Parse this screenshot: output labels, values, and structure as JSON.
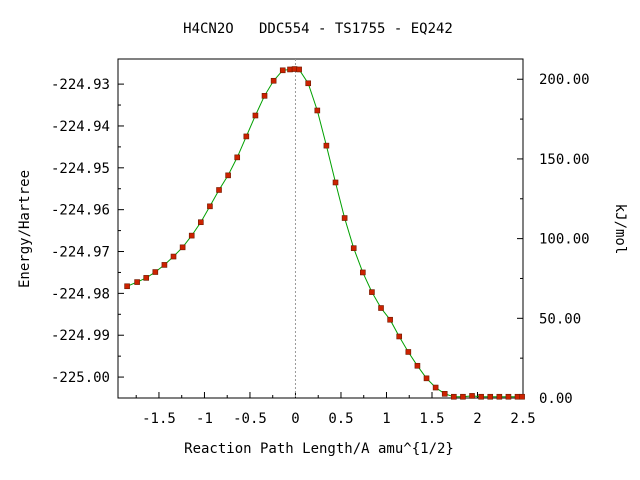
{
  "chart_data": {
    "type": "scatter",
    "title": "H4CN2O   DDC554 - TS1755 - EQ242",
    "xlabel": "Reaction Path Length/A amu^{1/2}",
    "ylabel": "Energy/Hartree",
    "y2label": "kJ/mol",
    "xlim": [
      -1.95,
      2.5
    ],
    "ylim": [
      -225.005,
      -224.924
    ],
    "y2lim": [
      0,
      212.7
    ],
    "x_ticks": [
      -1.5,
      -1,
      -0.5,
      0,
      0.5,
      1,
      1.5,
      2,
      2.5
    ],
    "x_tick_labels": [
      "-1.5",
      "-1",
      "-0.5",
      "0",
      "0.5",
      "1",
      "1.5",
      "2",
      "2.5"
    ],
    "y_ticks": [
      -224.93,
      -224.94,
      -224.95,
      -224.96,
      -224.97,
      -224.98,
      -224.99,
      -225.0
    ],
    "y_tick_labels": [
      "-224.93",
      "-224.94",
      "-224.95",
      "-224.96",
      "-224.97",
      "-224.98",
      "-224.99",
      "-225.00"
    ],
    "y2_ticks": [
      200,
      150,
      100,
      50,
      0
    ],
    "y2_tick_labels": [
      "200.00",
      "150.00",
      "100.00",
      "50.00",
      "0.00"
    ],
    "ts_x": 0,
    "line_color": "#00a000",
    "marker_color": "#cc2200",
    "marker_edge": "#6b1a00",
    "series": [
      {
        "x": [
          -1.85,
          -1.74,
          -1.64,
          -1.54,
          -1.44,
          -1.34,
          -1.24,
          -1.14,
          -1.04,
          -0.94,
          -0.84,
          -0.74,
          -0.64,
          -0.54,
          -0.44,
          -0.34,
          -0.24,
          -0.14,
          -0.06,
          -0.01,
          0.04,
          0.14,
          0.24,
          0.34,
          0.44,
          0.54,
          0.64,
          0.74,
          0.84,
          0.94,
          1.04,
          1.14,
          1.24,
          1.34,
          1.44,
          1.54,
          1.64,
          1.74,
          1.84,
          1.94,
          2.04,
          2.14,
          2.24,
          2.34,
          2.44,
          2.49
        ],
        "y": [
          -224.9783,
          -224.9773,
          -224.9763,
          -224.9749,
          -224.9732,
          -224.9712,
          -224.969,
          -224.9662,
          -224.963,
          -224.9592,
          -224.9553,
          -224.9518,
          -224.9475,
          -224.9425,
          -224.9375,
          -224.9328,
          -224.9292,
          -224.9267,
          -224.9265,
          -224.9264,
          -224.9265,
          -224.9298,
          -224.9363,
          -224.9447,
          -224.9535,
          -224.962,
          -224.9692,
          -224.975,
          -224.9797,
          -224.9835,
          -224.9863,
          -224.9903,
          -224.994,
          -224.9973,
          -225.0003,
          -225.0025,
          -225.004,
          -225.0047,
          -225.0047,
          -225.0045,
          -225.0047,
          -225.0047,
          -225.0047,
          -225.0047,
          -225.0047,
          -225.0047
        ]
      }
    ]
  }
}
